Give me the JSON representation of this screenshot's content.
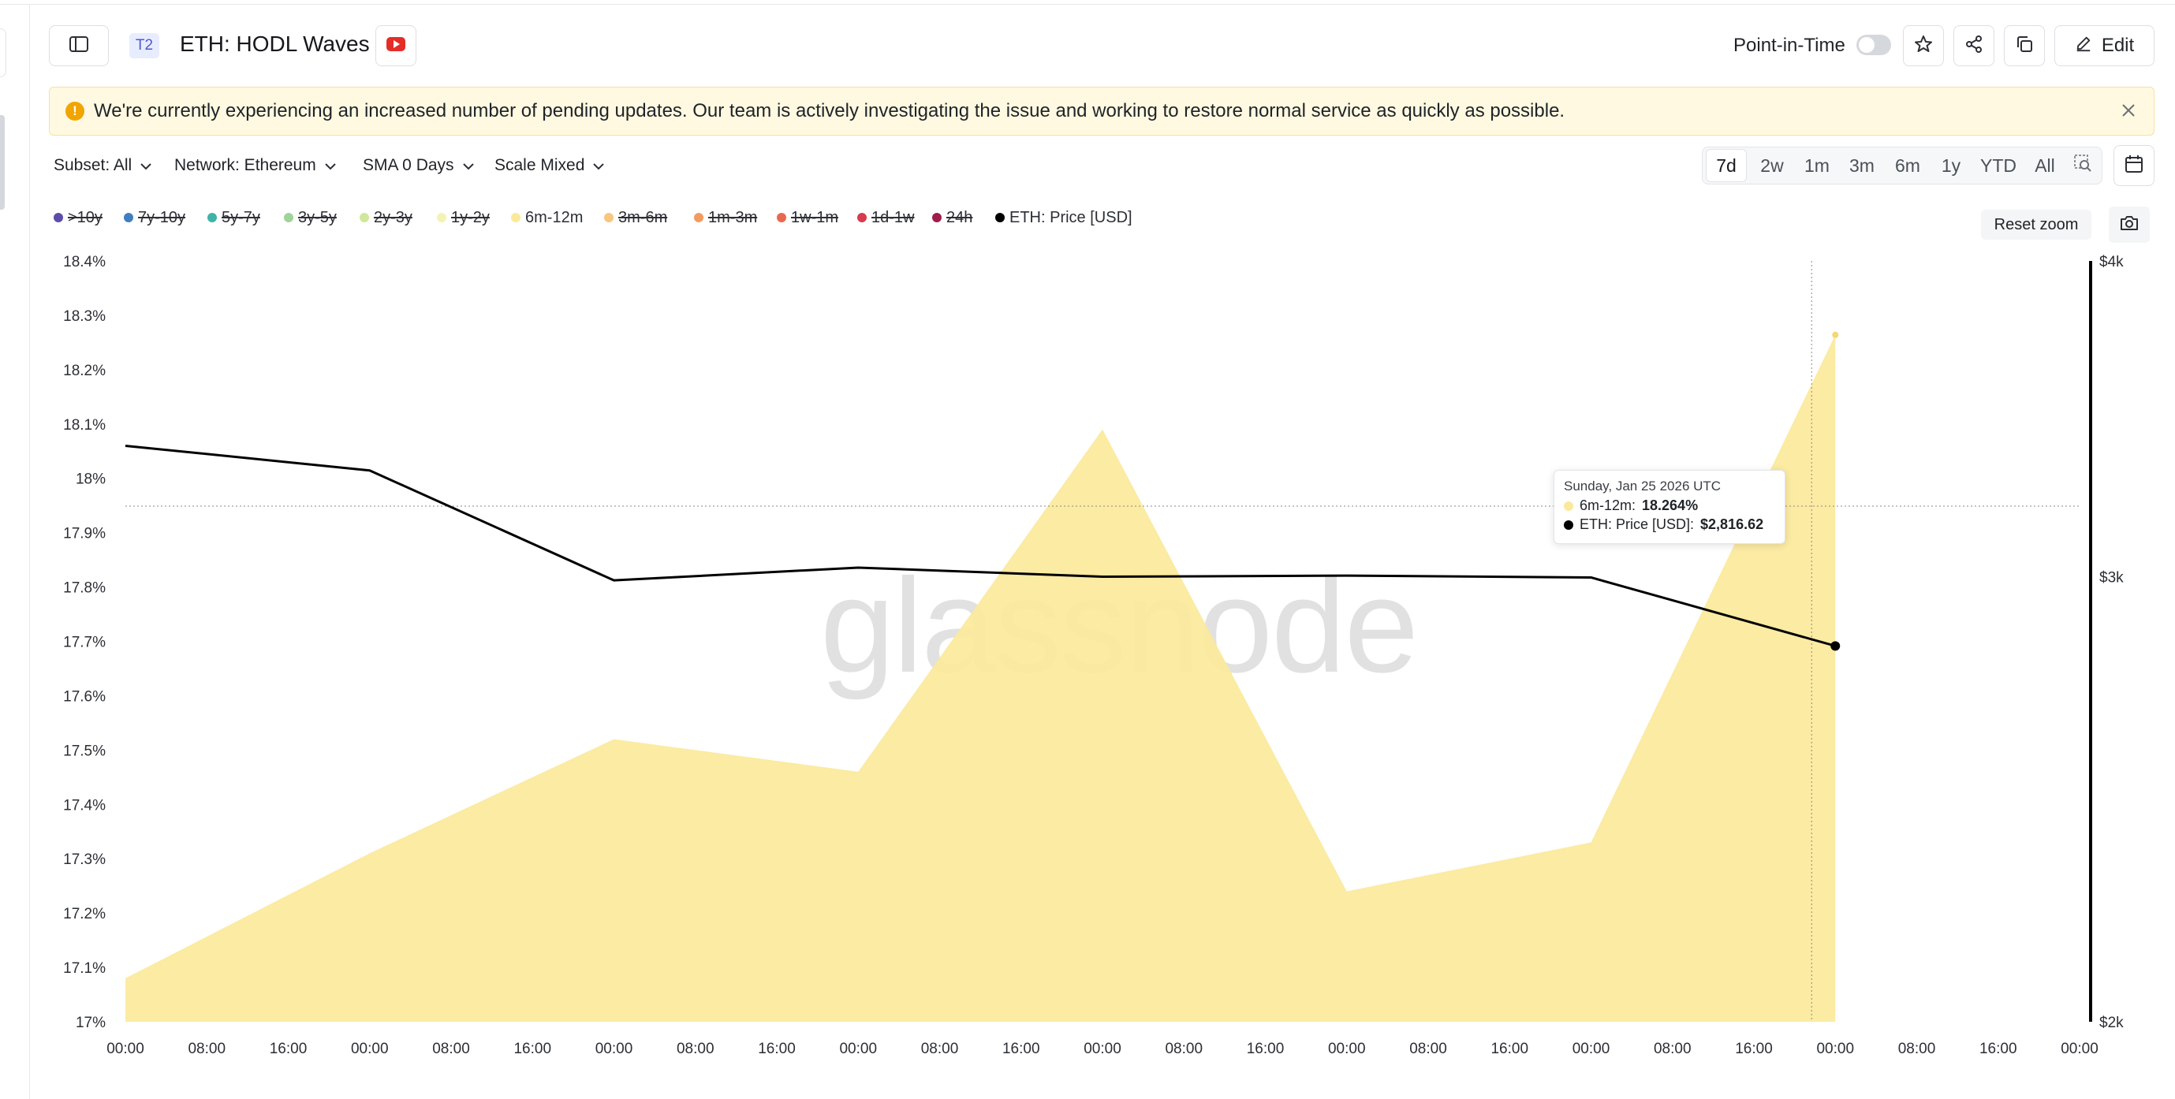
{
  "header": {
    "badge": "T2",
    "title": "ETH: HODL Waves",
    "point_in_time_label": "Point-in-Time",
    "point_in_time_enabled": false,
    "edit_label": "Edit"
  },
  "banner": {
    "message": "We're currently experiencing an increased number of pending updates. Our team is actively investigating the issue and working to restore normal service as quickly as possible.",
    "warning_icon": "!"
  },
  "filters": {
    "subset": "Subset: All",
    "network": "Network: Ethereum",
    "sma": "SMA 0 Days",
    "scale": "Scale Mixed"
  },
  "ranges": {
    "items": [
      "7d",
      "2w",
      "1m",
      "3m",
      "6m",
      "1y",
      "YTD",
      "All"
    ],
    "active": "7d"
  },
  "legend": [
    {
      "label": ">10y",
      "color": "#5b4ea8",
      "enabled": false
    },
    {
      "label": "7y-10y",
      "color": "#3f7fbf",
      "enabled": false
    },
    {
      "label": "5y-7y",
      "color": "#3fb3a8",
      "enabled": false
    },
    {
      "label": "3y-5y",
      "color": "#9fd39a",
      "enabled": false
    },
    {
      "label": "2y-3y",
      "color": "#cfe89a",
      "enabled": false
    },
    {
      "label": "1y-2y",
      "color": "#f4f3b3",
      "enabled": false
    },
    {
      "label": "6m-12m",
      "color": "#fbe99b",
      "enabled": true
    },
    {
      "label": "3m-6m",
      "color": "#f8c67e",
      "enabled": false
    },
    {
      "label": "1m-3m",
      "color": "#f29b5e",
      "enabled": false
    },
    {
      "label": "1w-1m",
      "color": "#e8684e",
      "enabled": false
    },
    {
      "label": "1d-1w",
      "color": "#d63b4f",
      "enabled": false
    },
    {
      "label": "24h",
      "color": "#9e1d4d",
      "enabled": false
    },
    {
      "label": "ETH: Price [USD]",
      "color": "#000000",
      "enabled": true
    }
  ],
  "controls": {
    "reset_zoom": "Reset zoom"
  },
  "tooltip": {
    "date": "Sunday, Jan 25 2026 UTC",
    "rows": [
      {
        "label": "6m-12m:",
        "value": "18.264%",
        "color": "#fbe99b"
      },
      {
        "label": "ETH: Price [USD]:",
        "value": "$2,816.62",
        "color": "#000000"
      }
    ]
  },
  "watermark": "glassnode",
  "chart_data": {
    "type": "area",
    "title": "ETH: HODL Waves",
    "x_tick_labels": [
      "00:00",
      "08:00",
      "16:00",
      "00:00",
      "08:00",
      "16:00",
      "00:00",
      "08:00",
      "16:00",
      "00:00",
      "08:00",
      "16:00",
      "00:00",
      "08:00",
      "16:00",
      "00:00",
      "08:00",
      "16:00",
      "00:00",
      "08:00",
      "16:00",
      "00:00",
      "08:00",
      "16:00",
      "00:00"
    ],
    "x_hours": [
      0,
      24,
      48,
      72,
      96,
      120,
      144,
      168
    ],
    "y_left": {
      "ticks": [
        "17%",
        "17.1%",
        "17.2%",
        "17.3%",
        "17.4%",
        "17.5%",
        "17.6%",
        "17.7%",
        "17.8%",
        "17.9%",
        "18%",
        "18.1%",
        "18.2%",
        "18.3%",
        "18.4%"
      ],
      "range": [
        17.0,
        18.4
      ],
      "unit": "%"
    },
    "y_right": {
      "ticks": [
        "$2k",
        "$3k",
        "$4k"
      ],
      "range": [
        2000,
        4000
      ],
      "scale": "log"
    },
    "series": [
      {
        "name": "6m-12m",
        "axis": "left",
        "color": "#fbe99b",
        "values": [
          17.08,
          17.31,
          17.52,
          17.46,
          18.09,
          17.24,
          17.33,
          18.264
        ]
      },
      {
        "name": "ETH: Price [USD]",
        "axis": "right",
        "color": "#000000",
        "values": [
          3380,
          3305,
          2990,
          3025,
          3000,
          3003,
          2998,
          2816.62
        ]
      }
    ],
    "grid": false,
    "legend_position": "top-left"
  }
}
